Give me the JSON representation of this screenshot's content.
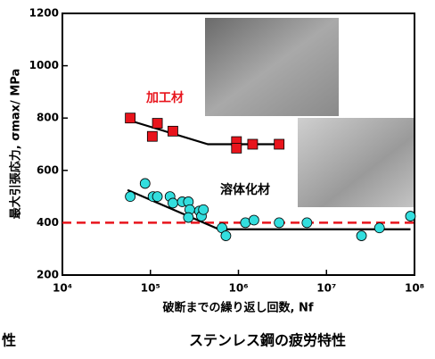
{
  "chart_data": {
    "type": "scatter",
    "title": "ステンレス鋼の疲労特性",
    "clipped_text": "性",
    "x_label": "破断までの繰り返し回数, Nf",
    "y_label": "最大引張応力, σmax/ MPa",
    "x_log": true,
    "xlim": [
      10000,
      100000000
    ],
    "xticks": [
      {
        "value": 10000,
        "label": "10⁴"
      },
      {
        "value": 100000,
        "label": "10⁵"
      },
      {
        "value": 1000000,
        "label": "10⁶"
      },
      {
        "value": 10000000,
        "label": "10⁷"
      },
      {
        "value": 100000000,
        "label": "10⁸"
      }
    ],
    "ylim": [
      200,
      1200
    ],
    "yticks": [
      200,
      400,
      600,
      800,
      {
        "value": 1000,
        "label": "1000"
      },
      {
        "value": 1200,
        "label": "1200"
      }
    ],
    "series": [
      {
        "name": "加工材",
        "color": "#e8141c",
        "marker": "square",
        "x": [
          59000,
          105000,
          120000,
          180000,
          950000,
          950000,
          1450000,
          2900000
        ],
        "values": [
          800,
          730,
          780,
          750,
          710,
          685,
          700,
          700
        ]
      },
      {
        "name": "溶体化材",
        "color": "#33dede",
        "marker": "circle",
        "x": [
          59000,
          87000,
          107000,
          120000,
          167000,
          180000,
          230000,
          270000,
          280000,
          270000,
          360000,
          380000,
          400000,
          650000,
          720000,
          1200000,
          1500000,
          2900000,
          6000000,
          25000000,
          40000000,
          90000000
        ],
        "values": [
          500,
          550,
          500,
          500,
          500,
          475,
          480,
          480,
          450,
          420,
          445,
          425,
          450,
          380,
          350,
          400,
          410,
          400,
          400,
          350,
          380,
          425
        ]
      }
    ],
    "trend_lines": [
      {
        "color": "#000000",
        "x": [
          59000,
          450000,
          3000000
        ],
        "values": [
          790,
          700,
          700
        ]
      },
      {
        "color": "#000000",
        "x": [
          55000,
          600000,
          90000000
        ],
        "values": [
          525,
          375,
          375
        ]
      }
    ],
    "reference_line": {
      "value": 400,
      "color": "#e8141c"
    }
  }
}
